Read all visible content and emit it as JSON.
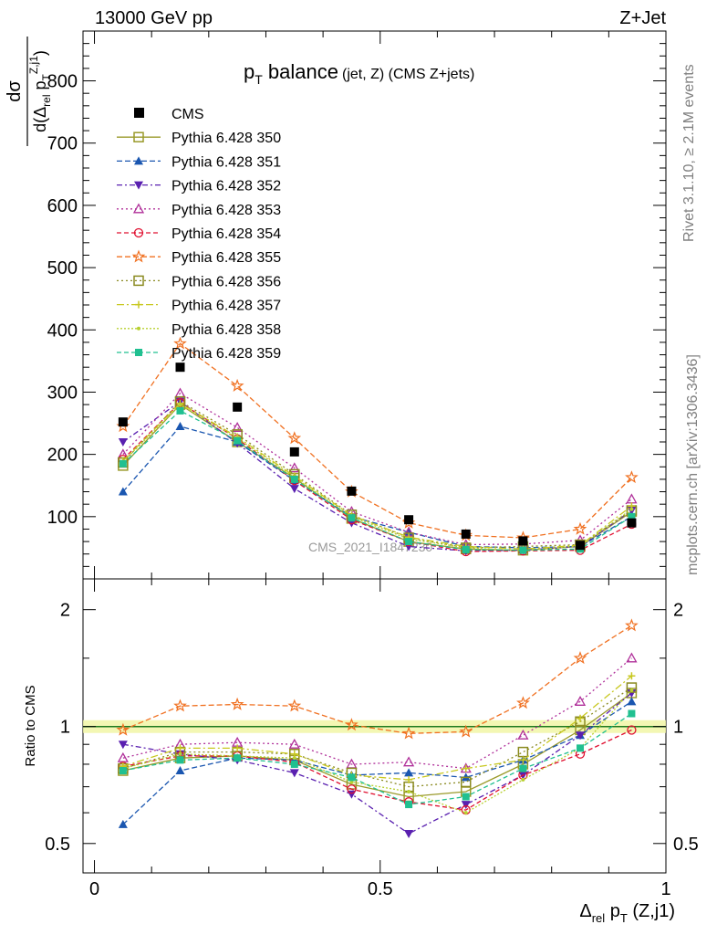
{
  "header": {
    "left": "13000 GeV pp",
    "right": "Z+Jet"
  },
  "side_labels": {
    "rivet": "Rivet 3.1.10, ≥ 2.1M events",
    "mcplots": "mcplots.cern.ch [arXiv:1306.3436]"
  },
  "watermark": "CMS_2021_I1847230",
  "title": {
    "main": "p",
    "sub": "T",
    "rest": " balance",
    "paren": "(jet, Z) (CMS Z+jets)"
  },
  "top_ylabel": {
    "num": "dσ",
    "den_pre": "d(Δ",
    "den_sub": "rel",
    "den_mid": " p",
    "den_sub2": "T",
    "den_sup": "Z,j1",
    "den_post": ")"
  },
  "ratio_ylabel": "Ratio to CMS",
  "xlabel": {
    "delta": "Δ",
    "sub": "rel",
    "p": " p",
    "psub": "T",
    "rest": " (Z,j1)"
  },
  "colors": {
    "data": "#000000",
    "s350": "#9a9a2a",
    "s351": "#1a56b0",
    "s352": "#5a20b0",
    "s353": "#b0309a",
    "s354": "#e01030",
    "s355": "#f07020",
    "s356": "#8a8a20",
    "s357": "#c8c820",
    "s358": "#b8d030",
    "s359": "#20c090"
  },
  "chart_data": [
    {
      "type": "line",
      "panel": "main",
      "x": [
        0.05,
        0.15,
        0.25,
        0.35,
        0.45,
        0.55,
        0.65,
        0.75,
        0.85,
        0.94
      ],
      "ylim": [
        0,
        880
      ],
      "xlim": [
        -0.02,
        1.0
      ],
      "yticks": [
        "100",
        "200",
        "300",
        "400",
        "500",
        "600",
        "700",
        "800"
      ],
      "ytick_values": [
        100,
        200,
        300,
        400,
        500,
        600,
        700,
        800
      ],
      "data": {
        "name": "CMS",
        "values": [
          252,
          340,
          276,
          204,
          141,
          95,
          72,
          61,
          54,
          90
        ]
      },
      "series": [
        {
          "name": "Pythia 6.428 350",
          "values": [
            182,
            280,
            220,
            162,
            97,
            60,
            48,
            46,
            52,
            108
          ]
        },
        {
          "name": "Pythia 6.428 351",
          "values": [
            140,
            245,
            220,
            158,
            100,
            75,
            52,
            50,
            52,
            100
          ]
        },
        {
          "name": "Pythia 6.428 352",
          "values": [
            220,
            285,
            218,
            145,
            90,
            52,
            45,
            46,
            52,
            110
          ]
        },
        {
          "name": "Pythia 6.428 353",
          "values": [
            200,
            298,
            243,
            178,
            108,
            75,
            55,
            56,
            62,
            128
          ]
        },
        {
          "name": "Pythia 6.428 354",
          "values": [
            192,
            283,
            225,
            158,
            95,
            60,
            44,
            45,
            46,
            88
          ]
        },
        {
          "name": "Pythia 6.428 355",
          "values": [
            245,
            378,
            310,
            226,
            140,
            90,
            70,
            66,
            80,
            163
          ]
        },
        {
          "name": "Pythia 6.428 356",
          "values": [
            187,
            285,
            232,
            168,
            103,
            66,
            50,
            52,
            55,
            110
          ]
        },
        {
          "name": "Pythia 6.428 357",
          "values": [
            190,
            282,
            228,
            165,
            102,
            67,
            52,
            48,
            54,
            117
          ]
        },
        {
          "name": "Pythia 6.428 358",
          "values": [
            188,
            280,
            226,
            163,
            100,
            64,
            50,
            45,
            53,
            112
          ]
        },
        {
          "name": "Pythia 6.428 359",
          "values": [
            185,
            270,
            222,
            160,
            98,
            60,
            47,
            46,
            48,
            100
          ]
        }
      ]
    },
    {
      "type": "line",
      "panel": "ratio",
      "ylabel": "Ratio to CMS",
      "yscale": "log",
      "ylim": [
        0.42,
        2.4
      ],
      "yticks": [
        "0.5",
        "1",
        "2"
      ],
      "ytick_values": [
        0.5,
        1,
        2
      ],
      "xticks": [
        "0",
        "0.5",
        "1"
      ],
      "xtick_values": [
        0,
        0.5,
        1
      ],
      "x": [
        0.05,
        0.15,
        0.25,
        0.35,
        0.45,
        0.55,
        0.65,
        0.75,
        0.85,
        0.94
      ],
      "series": [
        {
          "name": "Pythia 6.428 350",
          "values": [
            0.77,
            0.83,
            0.84,
            0.82,
            0.71,
            0.66,
            0.68,
            0.8,
            0.98,
            1.22
          ]
        },
        {
          "name": "Pythia 6.428 351",
          "values": [
            0.56,
            0.77,
            0.83,
            0.82,
            0.75,
            0.76,
            0.74,
            0.82,
            0.95,
            1.16
          ]
        },
        {
          "name": "Pythia 6.428 352",
          "values": [
            0.9,
            0.85,
            0.82,
            0.76,
            0.67,
            0.53,
            0.63,
            0.75,
            0.95,
            1.22
          ]
        },
        {
          "name": "Pythia 6.428 353",
          "values": [
            0.83,
            0.9,
            0.91,
            0.9,
            0.8,
            0.81,
            0.78,
            0.95,
            1.16,
            1.5
          ]
        },
        {
          "name": "Pythia 6.428 354",
          "values": [
            0.79,
            0.84,
            0.84,
            0.81,
            0.69,
            0.64,
            0.61,
            0.75,
            0.85,
            0.98
          ]
        },
        {
          "name": "Pythia 6.428 355",
          "values": [
            0.98,
            1.13,
            1.14,
            1.13,
            1.01,
            0.96,
            0.97,
            1.15,
            1.5,
            1.82
          ]
        },
        {
          "name": "Pythia 6.428 356",
          "values": [
            0.78,
            0.86,
            0.86,
            0.85,
            0.76,
            0.7,
            0.72,
            0.86,
            1.03,
            1.26
          ]
        },
        {
          "name": "Pythia 6.428 357",
          "values": [
            0.79,
            0.88,
            0.88,
            0.85,
            0.75,
            0.73,
            0.78,
            0.82,
            1.05,
            1.35
          ]
        },
        {
          "name": "Pythia 6.428 358",
          "values": [
            0.78,
            0.85,
            0.84,
            0.83,
            0.72,
            0.68,
            0.6,
            0.73,
            0.88,
            1.24
          ]
        },
        {
          "name": "Pythia 6.428 359",
          "values": [
            0.77,
            0.82,
            0.83,
            0.8,
            0.74,
            0.63,
            0.66,
            0.78,
            0.88,
            1.08
          ]
        }
      ]
    }
  ]
}
